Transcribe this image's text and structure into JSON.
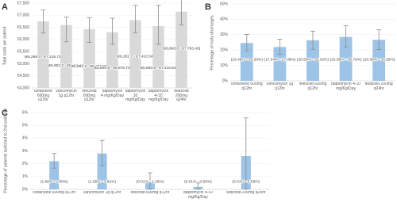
{
  "chart_data": [
    {
      "type": "bar",
      "panel": "A",
      "ylabel": "Total costs per patient",
      "categories": [
        "ceftaroline 600mg q12hr",
        "vancomycin 1g q12hr",
        "linezolid 600mg q12hr",
        "daptomycin 4 mg/Kg/Day",
        "daptomycin 10 mg/Kg/Day",
        "daptomycin 4-10 mg/Kg/Day",
        "tedizolid 200mg q24hr"
      ],
      "values": [
        6750,
        6600,
        6430,
        6300,
        6800,
        6550,
        7150
      ],
      "error_low": [
        6268.4,
        5902.2,
        5881.3,
        5800.8,
        6282.7,
        5800.8,
        6608.8
      ],
      "error_high": [
        7219.71,
        6929.28,
        6904.97,
        6878.7,
        7410.54,
        7410.54,
        7763.48
      ],
      "error_labels": [
        "(€6,268.4 - €7,219.71)",
        "(€5,902.2 - €6,929.28)",
        "(€5,881.3 - €6,904.97)",
        "(€5,800.8 - €6,878.70)",
        "(€6,282.7 - €7,410.54)",
        "(€5,800.8 - €7,410.54)",
        "(€6,608.8 - €7,763.48)"
      ],
      "color": "#d9d9d9",
      "error_color": "#8c8c8c",
      "ylim": [
        4000,
        7500
      ],
      "yticks": [
        {
          "value": 4000,
          "label": "€4,000"
        },
        {
          "value": 4500,
          "label": "€4,500"
        },
        {
          "value": 5000,
          "label": "€5,000"
        },
        {
          "value": 5500,
          "label": "€5,500"
        },
        {
          "value": 6000,
          "label": "€6,000"
        },
        {
          "value": 6500,
          "label": "€6,500"
        },
        {
          "value": 7000,
          "label": "€7,000"
        },
        {
          "value": 7500,
          "label": "€7,500"
        }
      ],
      "grid": true
    },
    {
      "type": "bar",
      "panel": "B",
      "ylabel": "Percentage of early discharges",
      "categories": [
        "ceftaroline 600mg q12hr",
        "vancomycin 1g q12hr",
        "linezolid 600mg q12hr",
        "daptomycin 4-10 mg/Kg/Day",
        "tedizolid 200mg q24hr"
      ],
      "values": [
        24.6,
        22,
        26.4,
        28.6,
        26.7
      ],
      "error_low": [
        19.49,
        17.34,
        20.5,
        22.08,
        20.39
      ],
      "error_high": [
        30.2,
        27.09,
        32.32,
        35.79,
        33.25
      ],
      "error_labels": [
        "(19.49% - 30.20%)",
        "(17.34% - 27.09%)",
        "(20.50% - 32.32%)",
        "(22.08% - 35.79%)",
        "(20.39% - 33.25%)"
      ],
      "color": "#9dc3e6",
      "error_color": "#8c8c8c",
      "ylim": [
        0,
        50
      ],
      "yticks": [
        {
          "value": 0,
          "label": "0%"
        },
        {
          "value": 10,
          "label": "10%"
        },
        {
          "value": 20,
          "label": "20%"
        },
        {
          "value": 30,
          "label": "30%"
        },
        {
          "value": 40,
          "label": "40%"
        },
        {
          "value": 50,
          "label": "50%"
        }
      ],
      "grid": true
    },
    {
      "type": "bar",
      "panel": "C",
      "ylabel": "Percentage of patients switched to 2nd antibiotic",
      "categories": [
        "ceftaroline 600mg q12hr",
        "vancomycin 1g q12hr",
        "linezolid 600mg q12hr",
        "daptomycin 4-10 mg/Kg/Day",
        "tedizolid 200mg q24hr"
      ],
      "values": [
        2.2,
        2.8,
        0.6,
        0.2,
        2.6
      ],
      "error_low": [
        1.66,
        1.85,
        0.01,
        0.01,
        0.01
      ],
      "error_high": [
        2.8,
        3.82,
        1.29,
        0.5,
        5.58
      ],
      "error_labels": [
        "(1.66% - 2.80%)",
        "(1.85% - 3.82%)",
        "(0.01% - 1.29%)",
        "(0.01% - 0.50%)",
        "(0.01% - 5.58%)"
      ],
      "color": "#9dc3e6",
      "error_color": "#8c8c8c",
      "ylim": [
        0,
        6
      ],
      "yticks": [
        {
          "value": 0,
          "label": "0%"
        },
        {
          "value": 1,
          "label": "1%"
        },
        {
          "value": 2,
          "label": "2%"
        },
        {
          "value": 3,
          "label": "3%"
        },
        {
          "value": 4,
          "label": "4%"
        },
        {
          "value": 5,
          "label": "5%"
        },
        {
          "value": 6,
          "label": "6%"
        }
      ],
      "grid": true
    }
  ]
}
